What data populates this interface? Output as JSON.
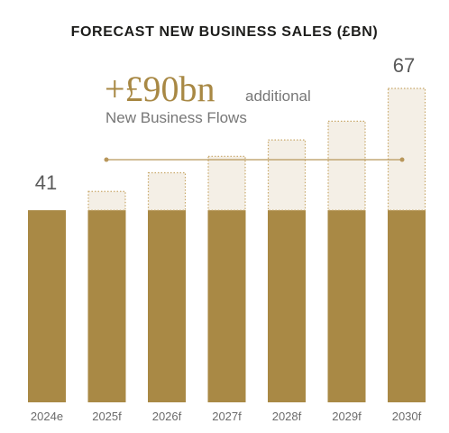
{
  "chart_data": {
    "type": "bar",
    "title": "FORECAST NEW BUSINESS SALES (£BN)",
    "categories": [
      "2024e",
      "2025f",
      "2026f",
      "2027f",
      "2028f",
      "2029f",
      "2030f"
    ],
    "series": [
      {
        "values": [
          41,
          41,
          41,
          41,
          41,
          41,
          41
        ]
      },
      {
        "values": [
          0,
          4,
          8,
          11.5,
          15,
          19,
          26
        ]
      }
    ],
    "totals": [
      41,
      45,
      49,
      52.5,
      56,
      60,
      67
    ],
    "data_labels": {
      "first": "41",
      "last": "67"
    },
    "annotation": {
      "headline": "+£90bn",
      "suffix": "additional",
      "subline": "New Business Flows"
    },
    "ylim": [
      0,
      67
    ],
    "colors": {
      "base": "#a98945",
      "increment_fill": "#f4efe6",
      "increment_border": "#c8a86a",
      "line": "#b8965a"
    },
    "grid": false
  }
}
